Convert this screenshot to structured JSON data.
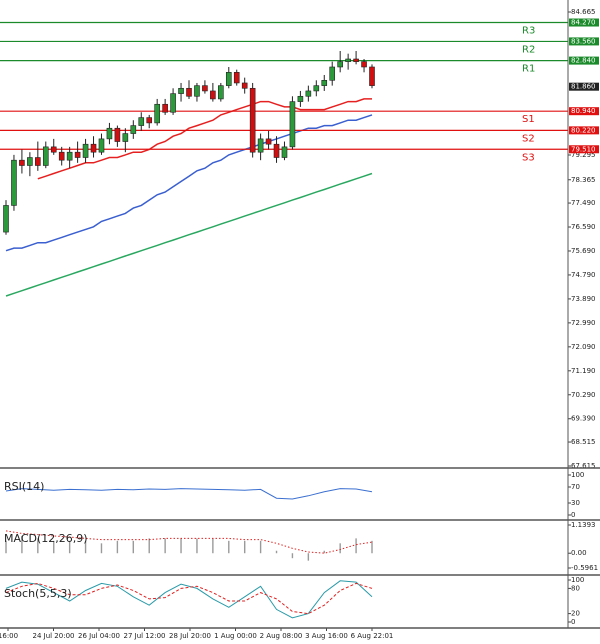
{
  "chart_data": [
    {
      "type": "candlestick",
      "open": [
        76.4,
        77.4,
        79.1,
        78.9,
        79.2,
        78.9,
        79.6,
        79.4,
        79.1,
        79.4,
        79.2,
        79.7,
        79.4,
        79.9,
        80.3,
        79.8,
        80.1,
        80.4,
        80.7,
        80.5,
        81.2,
        80.9,
        81.6,
        81.8,
        81.5,
        81.9,
        81.7,
        81.4,
        81.9,
        82.4,
        82.0,
        81.8,
        79.4,
        79.9,
        79.7,
        79.2,
        79.6,
        81.3,
        81.5,
        81.7,
        81.9,
        82.1,
        82.6,
        82.8,
        82.9,
        82.8,
        82.6
      ],
      "high": [
        77.6,
        79.3,
        79.5,
        79.4,
        79.8,
        79.8,
        79.9,
        79.6,
        79.6,
        79.8,
        79.9,
        80.0,
        80.1,
        80.5,
        80.4,
        80.3,
        80.6,
        80.9,
        80.8,
        81.4,
        81.4,
        81.8,
        82.0,
        82.1,
        82.0,
        82.1,
        82.0,
        82.0,
        82.6,
        82.5,
        82.2,
        82.0,
        80.1,
        80.2,
        80.0,
        79.8,
        81.5,
        81.7,
        81.9,
        82.1,
        82.3,
        82.8,
        83.2,
        83.1,
        83.2,
        82.9,
        82.7
      ],
      "low": [
        76.3,
        77.2,
        78.6,
        78.5,
        78.7,
        78.8,
        79.3,
        78.9,
        78.8,
        79.0,
        79.0,
        79.2,
        79.3,
        79.7,
        79.6,
        79.4,
        79.9,
        80.2,
        80.3,
        80.4,
        80.8,
        80.8,
        81.3,
        81.4,
        81.3,
        81.6,
        81.3,
        81.3,
        81.8,
        81.9,
        81.6,
        79.2,
        79.1,
        79.5,
        79.0,
        79.1,
        79.5,
        81.1,
        81.3,
        81.5,
        81.7,
        81.9,
        82.4,
        82.5,
        82.7,
        82.4,
        81.8
      ],
      "close": [
        77.4,
        79.1,
        78.9,
        79.2,
        78.9,
        79.6,
        79.4,
        79.1,
        79.4,
        79.2,
        79.7,
        79.4,
        79.9,
        80.3,
        79.8,
        80.1,
        80.4,
        80.7,
        80.5,
        81.2,
        80.9,
        81.6,
        81.8,
        81.5,
        81.9,
        81.7,
        81.4,
        81.9,
        82.4,
        82.0,
        81.8,
        79.4,
        79.9,
        79.7,
        79.2,
        79.6,
        81.3,
        81.5,
        81.7,
        81.9,
        82.1,
        82.6,
        82.8,
        82.9,
        82.8,
        82.6,
        81.9
      ],
      "up_color": "#2a9a3a",
      "down_color": "#d01010",
      "overlays": [
        {
          "color": "#e62020",
          "values": [
            null,
            null,
            null,
            null,
            78.4,
            78.5,
            78.6,
            78.7,
            78.8,
            78.9,
            79.0,
            79.0,
            79.1,
            79.2,
            79.2,
            79.3,
            79.4,
            79.4,
            79.5,
            79.7,
            79.8,
            80.0,
            80.1,
            80.3,
            80.4,
            80.5,
            80.6,
            80.8,
            80.9,
            81.0,
            81.1,
            81.2,
            81.3,
            81.3,
            81.2,
            81.1,
            81.1,
            81.0,
            81.0,
            81.0,
            81.0,
            81.1,
            81.2,
            81.3,
            81.3,
            81.4,
            81.4
          ]
        },
        {
          "color": "#3a5fd0",
          "values": [
            75.7,
            75.8,
            75.8,
            75.9,
            76.0,
            76.0,
            76.1,
            76.2,
            76.3,
            76.4,
            76.5,
            76.6,
            76.8,
            76.9,
            77.0,
            77.1,
            77.3,
            77.4,
            77.6,
            77.8,
            77.9,
            78.1,
            78.3,
            78.5,
            78.7,
            78.8,
            79.0,
            79.1,
            79.3,
            79.4,
            79.5,
            79.6,
            79.7,
            79.8,
            79.9,
            80.0,
            80.1,
            80.2,
            80.3,
            80.3,
            80.4,
            80.4,
            80.5,
            80.6,
            80.6,
            80.7,
            80.8
          ]
        },
        {
          "color": "#2aa860",
          "values": [
            74.0,
            74.1,
            74.2,
            74.3,
            74.4,
            74.5,
            74.6,
            74.7,
            74.8,
            74.9,
            75.0,
            75.1,
            75.2,
            75.3,
            75.4,
            75.5,
            75.6,
            75.7,
            75.8,
            75.9,
            76.0,
            76.1,
            76.2,
            76.3,
            76.4,
            76.5,
            76.6,
            76.7,
            76.8,
            76.9,
            77.0,
            77.1,
            77.2,
            77.3,
            77.4,
            77.5,
            77.6,
            77.7,
            77.8,
            77.9,
            78.0,
            78.1,
            78.2,
            78.3,
            78.4,
            78.5,
            78.6
          ]
        }
      ],
      "levels": [
        {
          "name": "R3",
          "value": 84.27,
          "label": "84.270",
          "color": "#1a8a2a"
        },
        {
          "name": "R2",
          "value": 83.56,
          "label": "83.560",
          "color": "#1a8a2a"
        },
        {
          "name": "R1",
          "value": 82.84,
          "label": "82.840",
          "color": "#1a8a2a"
        },
        {
          "name": "S1",
          "value": 80.94,
          "label": "80.940",
          "color": "#e01010"
        },
        {
          "name": "S2",
          "value": 80.22,
          "label": "80.220",
          "color": "#e01010"
        },
        {
          "name": "S3",
          "value": 79.51,
          "label": "79.510",
          "color": "#e01010"
        }
      ],
      "last_price": {
        "value": 81.86,
        "label": "81.860"
      },
      "ylim": [
        67.615,
        84.665
      ],
      "yticks": [
        84.665,
        79.295,
        78.365,
        {
          "value": 77.49,
          "label": "77.490"
        },
        {
          "value": 76.59,
          "label": "76.590"
        },
        {
          "value": 75.69,
          "label": "75.690"
        },
        {
          "value": 74.79,
          "label": "74.790"
        },
        {
          "value": 73.89,
          "label": "73.890"
        },
        {
          "value": 72.99,
          "label": "72.990"
        },
        {
          "value": 72.09,
          "label": "72.090"
        },
        {
          "value": 71.19,
          "label": "71.190"
        },
        {
          "value": 70.29,
          "label": "70.290"
        },
        {
          "value": 69.39,
          "label": "69.390"
        },
        68.515,
        67.615
      ],
      "x_labels": [
        "16:00",
        "24 Jul 20:00",
        "26 Jul 04:00",
        "27 Jul 12:00",
        "28 Jul 20:00",
        "1 Aug 00:00",
        "2 Aug 08:00",
        "3 Aug 16:00",
        "6 Aug 22:01"
      ]
    },
    {
      "type": "line",
      "title": "RSI(14)",
      "ylim": [
        0,
        100
      ],
      "yticks": [
        100,
        70,
        30,
        0
      ],
      "series": [
        {
          "color": "#3a6fd0",
          "values": [
            60,
            66,
            64,
            62,
            64,
            63,
            62,
            64,
            63,
            65,
            64,
            66,
            65,
            64,
            63,
            62,
            64,
            42,
            40,
            48,
            58,
            66,
            65,
            58
          ]
        }
      ]
    },
    {
      "type": "bar",
      "title": "MACD(12,26,9)",
      "ylim": [
        -0.5961,
        1.1393
      ],
      "yticks": [
        1.1393,
        {
          "value": 0,
          "label": "0.00"
        },
        -0.5961
      ],
      "series": [
        {
          "color": "#9a9a9a",
          "values": [
            0.5,
            0.7,
            0.6,
            0.5,
            0.5,
            0.5,
            0.4,
            0.5,
            0.5,
            0.6,
            0.6,
            0.6,
            0.6,
            0.6,
            0.5,
            0.5,
            0.5,
            0.1,
            -0.2,
            -0.3,
            0.1,
            0.4,
            0.6,
            0.5
          ]
        },
        {
          "color": "#e02020",
          "style": "dotted",
          "values": [
            0.9,
            0.8,
            0.75,
            0.7,
            0.65,
            0.6,
            0.55,
            0.55,
            0.55,
            0.55,
            0.6,
            0.6,
            0.6,
            0.6,
            0.6,
            0.55,
            0.55,
            0.4,
            0.2,
            0.05,
            0.0,
            0.15,
            0.35,
            0.45
          ]
        }
      ]
    },
    {
      "type": "line",
      "title": "Stoch(5,5,3)",
      "ylim": [
        0,
        100
      ],
      "yticks": [
        100,
        80,
        20,
        0
      ],
      "series": [
        {
          "color": "#2a9aa8",
          "values": [
            80,
            95,
            90,
            70,
            50,
            75,
            92,
            85,
            60,
            40,
            70,
            90,
            80,
            55,
            35,
            60,
            85,
            30,
            10,
            20,
            70,
            98,
            95,
            60
          ]
        },
        {
          "color": "#e02020",
          "style": "dashed",
          "values": [
            70,
            85,
            92,
            80,
            65,
            65,
            80,
            88,
            75,
            55,
            58,
            80,
            85,
            70,
            50,
            50,
            70,
            55,
            25,
            20,
            40,
            75,
            92,
            80
          ]
        }
      ]
    }
  ]
}
